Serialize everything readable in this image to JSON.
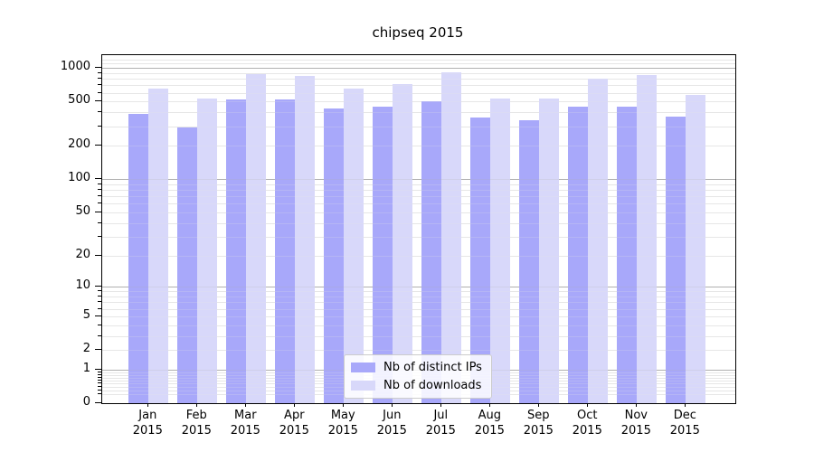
{
  "title": "chipseq 2015",
  "colors": {
    "ips_bar": "#a8a8fa",
    "downloads_bar": "#d8d8fa",
    "grid_major": "#b0b0b0",
    "grid_minor": "#e6e6e6",
    "axis": "#000000",
    "legend_border": "#cccccc"
  },
  "chart_data": {
    "type": "bar",
    "title": "chipseq 2015",
    "categories": [
      "Jan 2015",
      "Feb 2015",
      "Mar 2015",
      "Apr 2015",
      "May 2015",
      "Jun 2015",
      "Jul 2015",
      "Aug 2015",
      "Sep 2015",
      "Oct 2015",
      "Nov 2015",
      "Dec 2015"
    ],
    "series": [
      {
        "key": "ips",
        "name": "Nb of distinct IPs",
        "values": [
          390,
          295,
          525,
          525,
          435,
          450,
          505,
          360,
          340,
          455,
          455,
          370
        ]
      },
      {
        "key": "downloads",
        "name": "Nb of downloads",
        "values": [
          655,
          530,
          890,
          845,
          655,
          720,
          920,
          530,
          535,
          800,
          865,
          580
        ]
      }
    ],
    "xlabel": "",
    "ylabel": "",
    "y_scale": "log1p",
    "y_ticks": [
      0,
      1,
      2,
      5,
      10,
      20,
      50,
      100,
      200,
      500,
      1000
    ],
    "ylim": [
      0,
      1300
    ],
    "grid": true,
    "legend_position": "lower center"
  }
}
